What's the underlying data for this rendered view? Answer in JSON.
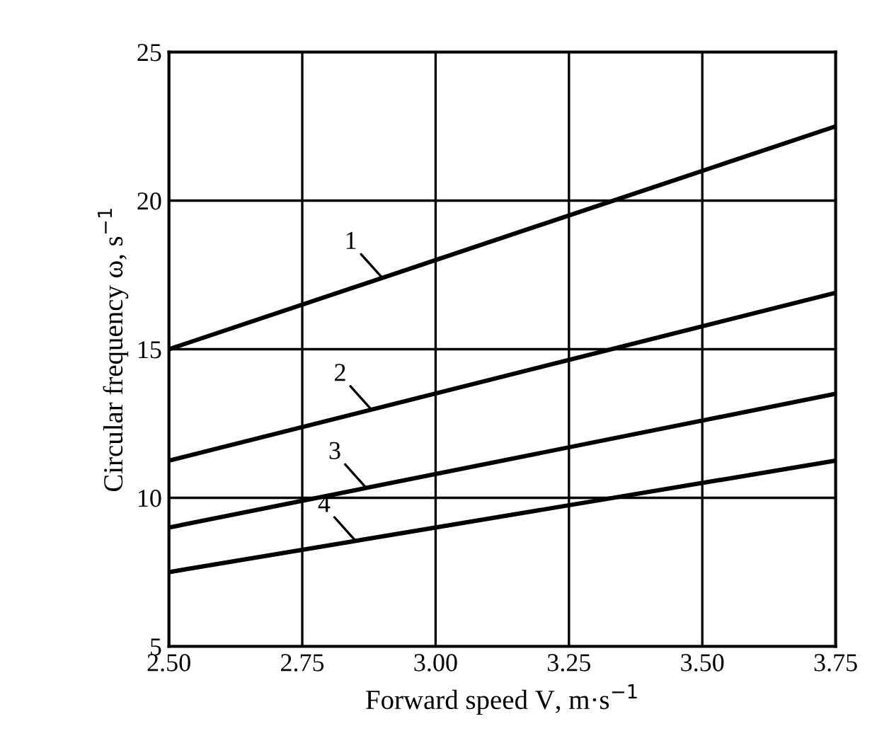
{
  "chart_data": {
    "type": "line",
    "xlabel": "Forward speed V, m·s$^{−1}$",
    "ylabel": "Circular frequency ω, s$^{−1}$",
    "x": [
      2.5,
      3.75
    ],
    "series": [
      {
        "color": "#000000",
        "values": [
          15,
          22.5
        ]
      },
      {
        "color": "#000000",
        "values": [
          11.25,
          16.9
        ]
      },
      {
        "color": "#000000",
        "values": [
          9,
          13.5
        ]
      },
      {
        "color": "#000000",
        "values": [
          7.5,
          11.25
        ]
      }
    ],
    "xlim": [
      2.5,
      3.75
    ],
    "ylim": [
      5,
      25
    ],
    "xticks": [
      {
        "value": 2.5,
        "label": "2.50"
      },
      {
        "value": 2.75,
        "label": "2.75"
      },
      {
        "value": 3.0,
        "label": "3.00"
      },
      {
        "value": 3.25,
        "label": "3.25"
      },
      {
        "value": 3.5,
        "label": "3.50"
      },
      {
        "value": 3.75,
        "label": "3.75"
      }
    ],
    "yticks": [
      5,
      10,
      15,
      20,
      25
    ],
    "annotations": [
      {
        "text": "1",
        "x": 2.9,
        "y": 17.4
      },
      {
        "text": "2",
        "x": 2.88,
        "y": 12.96
      },
      {
        "text": "3",
        "x": 2.87,
        "y": 10.33
      },
      {
        "text": "4",
        "x": 2.85,
        "y": 8.55
      }
    ],
    "grid": true,
    "legend": false,
    "marker": "none",
    "line_style": "solid"
  }
}
